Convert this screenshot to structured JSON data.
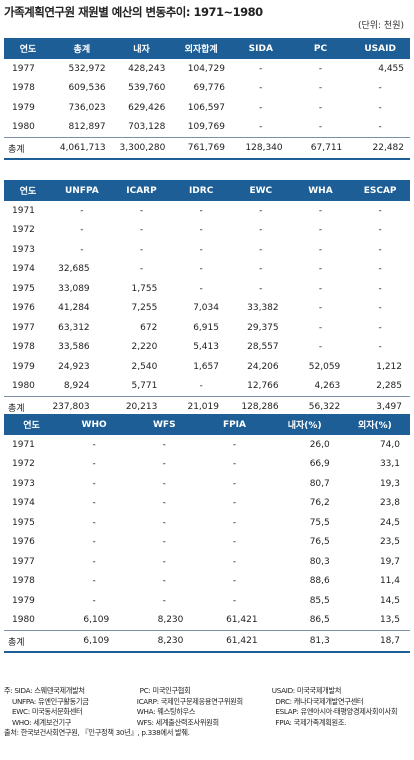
{
  "title": "가족계획연구원 재원별 예산의 변동추이: 1971~1980",
  "unit": "(단위: 천원)",
  "table1": {
    "headers": [
      "연도",
      "총계",
      "내자",
      "외자합계",
      "SIDA",
      "PC",
      "USAID"
    ],
    "rows": [
      [
        "1977",
        "532,972",
        "428,243",
        "104,729",
        "-",
        "-",
        "4,455"
      ],
      [
        "1978",
        "609,536",
        "539,760",
        "69,776",
        "-",
        "-",
        "-"
      ],
      [
        "1979",
        "736,023",
        "629,426",
        "106,597",
        "-",
        "-",
        "-"
      ],
      [
        "1980",
        "812,897",
        "703,128",
        "109,769",
        "-",
        "-",
        "-"
      ]
    ],
    "total": [
      "총계",
      "4,061,713",
      "3,300,280",
      "761,769",
      "128,340",
      "67,711",
      "22,482"
    ]
  },
  "table2": {
    "headers": [
      "연도",
      "UNFPA",
      "ICARP",
      "IDRC",
      "EWC",
      "WHA",
      "ESCAP"
    ],
    "rows": [
      [
        "1971",
        "-",
        "-",
        "-",
        "-",
        "-",
        "-"
      ],
      [
        "1972",
        "-",
        "-",
        "-",
        "-",
        "-",
        "-"
      ],
      [
        "1973",
        "-",
        "-",
        "-",
        "-",
        "-",
        "-"
      ],
      [
        "1974",
        "32,685",
        "-",
        "-",
        "-",
        "-",
        "-"
      ],
      [
        "1975",
        "33,089",
        "1,755",
        "-",
        "-",
        "-",
        "-"
      ],
      [
        "1976",
        "41,284",
        "7,255",
        "7,034",
        "33,382",
        "-",
        "-"
      ],
      [
        "1977",
        "63,312",
        "672",
        "6,915",
        "29,375",
        "-",
        "-"
      ],
      [
        "1978",
        "33,586",
        "2,220",
        "5,413",
        "28,557",
        "-",
        "-"
      ],
      [
        "1979",
        "24,923",
        "2,540",
        "1,657",
        "24,206",
        "52,059",
        "1,212"
      ],
      [
        "1980",
        "8,924",
        "5,771",
        "-",
        "12,766",
        "4,263",
        "2,285"
      ]
    ],
    "total": [
      "총계",
      "237,803",
      "20,213",
      "21,019",
      "128,286",
      "56,322",
      "3,497"
    ]
  },
  "table3": {
    "headers": [
      "연도",
      "WHO",
      "WFS",
      "FPIA",
      "내자(%)",
      "외자(%)"
    ],
    "rows": [
      [
        "1971",
        "-",
        "-",
        "-",
        "26,0",
        "74,0"
      ],
      [
        "1972",
        "-",
        "-",
        "-",
        "66,9",
        "33,1"
      ],
      [
        "1973",
        "-",
        "-",
        "-",
        "80,7",
        "19,3"
      ],
      [
        "1974",
        "-",
        "-",
        "-",
        "76,2",
        "23,8"
      ],
      [
        "1975",
        "-",
        "-",
        "-",
        "75,5",
        "24,5"
      ],
      [
        "1976",
        "-",
        "-",
        "-",
        "76,5",
        "23,5"
      ],
      [
        "1977",
        "-",
        "-",
        "-",
        "80,3",
        "19,7"
      ],
      [
        "1978",
        "-",
        "-",
        "-",
        "88,6",
        "11,4"
      ],
      [
        "1979",
        "-",
        "-",
        "-",
        "85,5",
        "14,5"
      ],
      [
        "1980",
        "6,109",
        "8,230",
        "61,421",
        "86,5",
        "13,5"
      ]
    ],
    "total": [
      "총계",
      "6,109",
      "8,230",
      "61,421",
      "81,3",
      "18,7"
    ]
  },
  "notes": {
    "r1": [
      "주: SIDA: 스웨덴국제개발처",
      "PC: 미국인구협회",
      "USAID: 미국국제개발처"
    ],
    "r2": [
      "UNFPA: 유엔인구활동기금",
      "ICARP: 국제인구문제응용연구위원회",
      "DRC: 캐나다국제개발연구센터"
    ],
    "r3": [
      "EWC: 미국동서문화센터",
      "WHA: 웨스팅하우스",
      "ESLAP: 유엔아시아·태평양경제사회이사회"
    ],
    "r4": [
      "WHO: 세계보건기구",
      "WFS: 세계출산력조사위원회",
      "FPIA: 국제가족계획원조."
    ],
    "source": "출처: 한국보건사회연구원, 『인구정책 30년』, p.338에서 발췌."
  }
}
